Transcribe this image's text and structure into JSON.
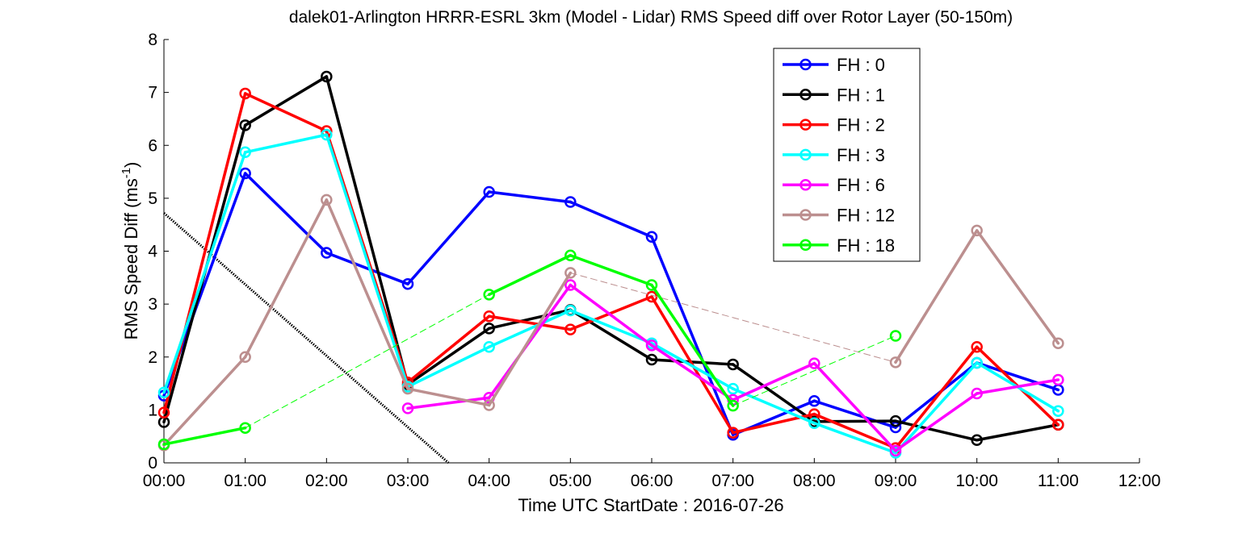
{
  "chart_data": {
    "type": "line",
    "title": "dalek01-Arlington HRRR-ESRL 3km (Model - Lidar) RMS Speed diff over Rotor Layer (50-150m)",
    "xlabel": "Time UTC    StartDate : 2016-07-26",
    "ylabel_main": "RMS Speed Diff (ms",
    "ylabel_sup": "-1",
    "ylabel_tail": ")",
    "x_ticks": [
      "00:00",
      "01:00",
      "02:00",
      "03:00",
      "04:00",
      "05:00",
      "06:00",
      "07:00",
      "08:00",
      "09:00",
      "10:00",
      "11:00",
      "12:00"
    ],
    "y_ticks": [
      "0",
      "1",
      "2",
      "3",
      "4",
      "5",
      "6",
      "7",
      "8"
    ],
    "xlim": [
      0,
      12
    ],
    "ylim": [
      0,
      8
    ],
    "grid": false,
    "legend_position": "top-right",
    "series": [
      {
        "name": "FH : 0",
        "color": "#0000ff",
        "x": [
          0,
          1,
          2,
          3,
          4,
          5,
          6,
          7,
          8,
          9,
          10,
          11
        ],
        "y": [
          1.27,
          5.47,
          3.97,
          3.38,
          5.12,
          4.93,
          4.27,
          0.53,
          1.17,
          0.67,
          1.89,
          1.38
        ]
      },
      {
        "name": "FH : 1",
        "color": "#000000",
        "x": [
          0,
          1,
          2,
          3,
          4,
          5,
          6,
          7,
          8,
          9,
          10,
          11
        ],
        "y": [
          0.77,
          6.38,
          7.3,
          1.48,
          2.54,
          2.89,
          1.95,
          1.86,
          0.78,
          0.79,
          0.43,
          0.72
        ]
      },
      {
        "name": "FH : 2",
        "color": "#ff0000",
        "x": [
          0,
          1,
          2,
          3,
          4,
          5,
          6,
          7,
          8,
          9,
          10,
          11
        ],
        "y": [
          0.95,
          6.98,
          6.27,
          1.52,
          2.77,
          2.52,
          3.14,
          0.57,
          0.92,
          0.28,
          2.19,
          0.72
        ]
      },
      {
        "name": "FH : 3",
        "color": "#00ffff",
        "x": [
          0,
          1,
          2,
          3,
          4,
          5,
          6,
          7,
          8,
          9,
          10,
          11
        ],
        "y": [
          1.33,
          5.87,
          6.2,
          1.44,
          2.19,
          2.88,
          2.26,
          1.4,
          0.75,
          0.19,
          1.89,
          0.98
        ]
      },
      {
        "name": "FH : 6",
        "color": "#ff00ff",
        "x": [
          3,
          4,
          5,
          6,
          7,
          8,
          9,
          10,
          11
        ],
        "y": [
          1.03,
          1.23,
          3.36,
          2.22,
          1.19,
          1.88,
          0.23,
          1.31,
          1.57
        ]
      },
      {
        "name": "FH : 12",
        "color": "#bc8f8f",
        "x": [
          0,
          1,
          2,
          3,
          4,
          5,
          9,
          10,
          11
        ],
        "y": [
          0.33,
          2.0,
          4.97,
          1.4,
          1.09,
          3.59,
          1.9,
          4.39,
          2.26
        ],
        "gaps_dashed": [
          [
            5,
            9
          ]
        ]
      },
      {
        "name": "FH : 18",
        "color": "#00ff00",
        "x": [
          0,
          1,
          4,
          5,
          6,
          7,
          9
        ],
        "y": [
          0.35,
          0.66,
          3.18,
          3.92,
          3.36,
          1.08,
          2.4
        ],
        "gaps_dashed": [
          [
            1,
            4
          ],
          [
            7,
            9
          ]
        ]
      }
    ],
    "annotations": [
      {
        "kind": "dotted-line",
        "color": "#000000",
        "x": [
          0,
          3.5
        ],
        "y": [
          4.72,
          0
        ]
      }
    ]
  }
}
